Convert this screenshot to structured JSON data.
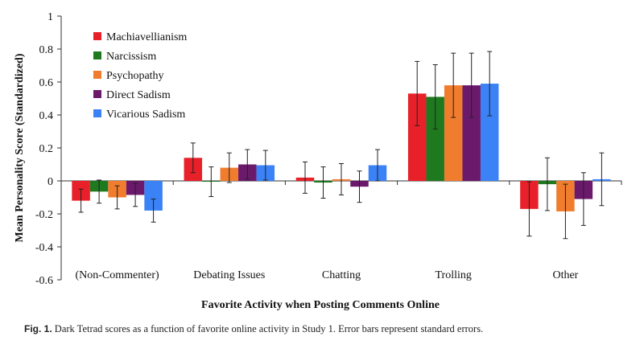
{
  "chart_data": {
    "type": "bar",
    "title": "",
    "xlabel": "Favorite Activity when Posting Comments Online",
    "ylabel": "Mean Personality Score (Standardized)",
    "ylim": [
      -0.6,
      1
    ],
    "yticks": [
      -0.6,
      -0.4,
      -0.2,
      0,
      0.2,
      0.4,
      0.6,
      0.8,
      1
    ],
    "ytick_labels": [
      "-0.6",
      "-0.4",
      "-0.2",
      "0",
      "0.2",
      "0.4",
      "0.6",
      "0.8",
      "1"
    ],
    "grid": false,
    "legend_position": "top-left",
    "categories": [
      "(Non-Commenter)",
      "Debating Issues",
      "Chatting",
      "Trolling",
      "Other"
    ],
    "series": [
      {
        "name": "Machiavellianism",
        "color": "#e8202a",
        "values": [
          -0.12,
          0.14,
          0.02,
          0.53,
          -0.17
        ],
        "errors": [
          0.07,
          0.09,
          0.095,
          0.195,
          0.165
        ]
      },
      {
        "name": "Narcissism",
        "color": "#1f7a1f",
        "values": [
          -0.065,
          -0.005,
          -0.01,
          0.51,
          -0.02
        ],
        "errors": [
          0.07,
          0.09,
          0.095,
          0.195,
          0.16
        ]
      },
      {
        "name": "Psychopathy",
        "color": "#f07c2e",
        "values": [
          -0.1,
          0.08,
          0.01,
          0.58,
          -0.185
        ],
        "errors": [
          0.07,
          0.09,
          0.095,
          0.195,
          0.165
        ]
      },
      {
        "name": "Direct Sadism",
        "color": "#6b1a6b",
        "values": [
          -0.085,
          0.1,
          -0.035,
          0.58,
          -0.11
        ],
        "errors": [
          0.07,
          0.09,
          0.095,
          0.195,
          0.16
        ]
      },
      {
        "name": "Vicarious Sadism",
        "color": "#3b82f6",
        "values": [
          -0.18,
          0.095,
          0.095,
          0.59,
          0.01
        ],
        "errors": [
          0.07,
          0.09,
          0.095,
          0.195,
          0.16
        ]
      }
    ]
  },
  "caption": {
    "label": "Fig. 1.",
    "text": " Dark Tetrad scores as a function of favorite online activity in Study 1. Error bars represent standard errors."
  }
}
